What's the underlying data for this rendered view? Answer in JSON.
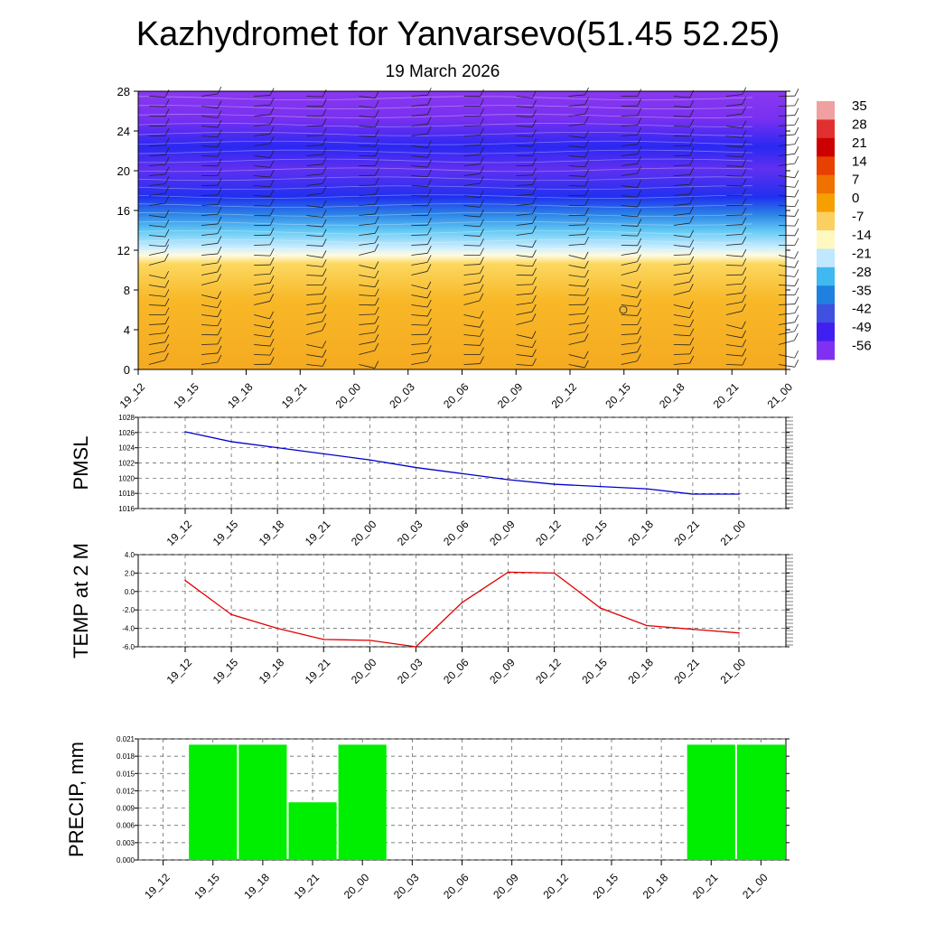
{
  "title": "Kazhydromet for Yanvarsevo(51.45 52.25)",
  "subtitle": "19 March 2026",
  "time_labels": [
    "19_12",
    "19_15",
    "19_18",
    "19_21",
    "20_00",
    "20_03",
    "20_06",
    "20_09",
    "20_12",
    "20_15",
    "20_18",
    "20_21",
    "21_00"
  ],
  "colors": {
    "pmsl": "#0000cc",
    "temp": "#e00000",
    "precip": "#00ee00"
  },
  "chart_data": [
    {
      "type": "heatmap",
      "title": "Temperature cross-section with wind barbs",
      "xlabel": "",
      "ylabel": "",
      "ylim": [
        0,
        28
      ],
      "y_ticks": [
        0,
        4,
        8,
        12,
        16,
        20,
        24,
        28
      ],
      "freezing_level_km": 11.5,
      "tropopause_km": 18,
      "colorbar": {
        "labels": [
          "35",
          "28",
          "21",
          "14",
          "7",
          "0",
          "-7",
          "-14",
          "-21",
          "-28",
          "-35",
          "-42",
          "-49",
          "-56"
        ],
        "colors": [
          "#f0a0a0",
          "#e03030",
          "#cc0000",
          "#e84000",
          "#f07000",
          "#f5a000",
          "#fcd060",
          "#fff8c0",
          "#c0e8ff",
          "#40b8f0",
          "#2080e0",
          "#4050e0",
          "#4020f0",
          "#8030f0"
        ]
      }
    },
    {
      "type": "line",
      "ylabel": "PMSL",
      "ylim": [
        1016,
        1028
      ],
      "y_ticks": [
        "1016",
        "1018",
        "1020",
        "1022",
        "1024",
        "1026",
        "1028"
      ],
      "x": [
        "19_12",
        "19_15",
        "19_18",
        "19_21",
        "20_00",
        "20_03",
        "20_06",
        "20_09",
        "20_12",
        "20_15",
        "20_18",
        "20_21",
        "21_00"
      ],
      "values": [
        1026.1,
        1024.8,
        1024.0,
        1023.2,
        1022.4,
        1021.4,
        1020.6,
        1019.8,
        1019.2,
        1018.9,
        1018.6,
        1017.9,
        1017.9
      ]
    },
    {
      "type": "line",
      "ylabel": "TEMP at 2 M",
      "ylim": [
        -6,
        4
      ],
      "y_ticks": [
        "-6.0",
        "-4.0",
        "-2.0",
        "0.0",
        "2.0",
        "4.0"
      ],
      "x": [
        "19_12",
        "19_15",
        "19_18",
        "19_21",
        "20_00",
        "20_03",
        "20_06",
        "20_09",
        "20_12",
        "20_15",
        "20_18",
        "20_21",
        "21_00"
      ],
      "values": [
        1.2,
        -2.5,
        -4.0,
        -5.2,
        -5.3,
        -6.0,
        -1.2,
        2.1,
        2.0,
        -1.8,
        -3.7,
        -4.1,
        -4.5
      ]
    },
    {
      "type": "bar",
      "ylabel": "PRECIP, mm",
      "ylim": [
        0,
        0.021
      ],
      "y_ticks": [
        "0.000",
        "0.003",
        "0.006",
        "0.009",
        "0.012",
        "0.015",
        "0.018",
        "0.021"
      ],
      "categories": [
        "19_12",
        "19_15",
        "19_18",
        "19_21",
        "20_00",
        "20_03",
        "20_06",
        "20_09",
        "20_12",
        "20_15",
        "20_18",
        "20_21",
        "21_00"
      ],
      "values": [
        0,
        0.02,
        0.02,
        0.01,
        0.02,
        0,
        0,
        0,
        0,
        0,
        0,
        0.02,
        0.02
      ]
    }
  ]
}
